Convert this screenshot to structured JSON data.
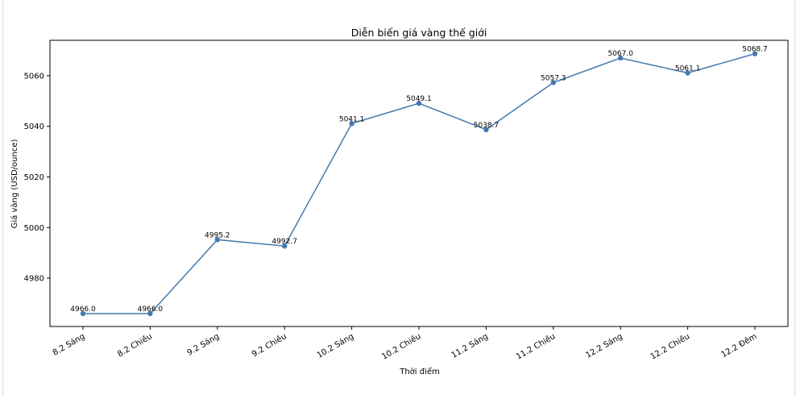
{
  "chart_data": {
    "type": "line",
    "title": "Diễn biến giá vàng thế giới",
    "xlabel": "Thời điểm",
    "ylabel": "Giá vàng (USD/ounce)",
    "categories": [
      "8.2 Sáng",
      "8.2 Chiều",
      "9.2 Sáng",
      "9.2 Chiều",
      "10.2 Sáng",
      "10.2 Chiều",
      "11.2 Sáng",
      "11.2 Chiều",
      "12.2 Sáng",
      "12.2 Chiều",
      "12.2 Đêm"
    ],
    "values": [
      4966.0,
      4966.0,
      4995.2,
      4992.7,
      5041.1,
      5049.1,
      5038.7,
      5057.3,
      5067.0,
      5061.1,
      5068.7
    ],
    "data_labels": [
      "4966.0",
      "4966.0",
      "4995.2",
      "4992.7",
      "5041.1",
      "5049.1",
      "5038.7",
      "5057.3",
      "5067.0",
      "5061.1",
      "5068.7"
    ],
    "yticks": [
      4980,
      5000,
      5020,
      5040,
      5060
    ],
    "ylim": [
      4960.9,
      5074.0
    ],
    "grid": false,
    "color": "#4479b0"
  }
}
